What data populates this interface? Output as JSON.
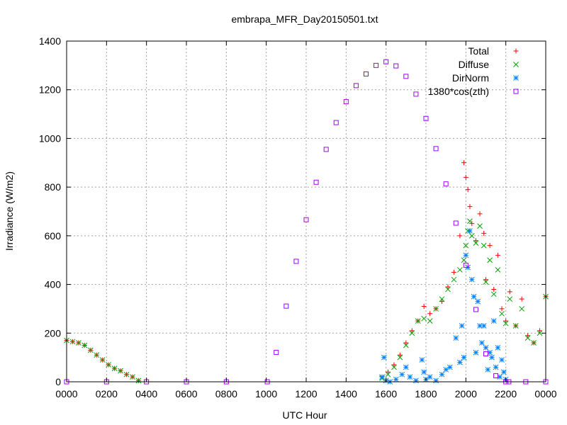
{
  "chart_data": {
    "type": "scatter",
    "title": "embrapa_MFR_Day20150501.txt",
    "xlabel": "UTC Hour",
    "ylabel": "Irradiance (W/m2)",
    "xlim": [
      0,
      24
    ],
    "ylim": [
      0,
      1400
    ],
    "grid": true,
    "legend_position": "top-right",
    "x_ticks": [
      {
        "value": 0,
        "label": "0000"
      },
      {
        "value": 2,
        "label": "0200"
      },
      {
        "value": 4,
        "label": "0400"
      },
      {
        "value": 6,
        "label": "0600"
      },
      {
        "value": 8,
        "label": "0800"
      },
      {
        "value": 10,
        "label": "1000"
      },
      {
        "value": 12,
        "label": "1200"
      },
      {
        "value": 14,
        "label": "1400"
      },
      {
        "value": 16,
        "label": "1600"
      },
      {
        "value": 18,
        "label": "1800"
      },
      {
        "value": 20,
        "label": "2000"
      },
      {
        "value": 22,
        "label": "2200"
      },
      {
        "value": 24,
        "label": "0000"
      }
    ],
    "y_ticks": [
      0,
      200,
      400,
      600,
      800,
      1000,
      1200,
      1400
    ],
    "series": [
      {
        "name": "Total",
        "marker": "plus",
        "color": "#ff0000",
        "x": [
          0.0,
          0.3,
          0.6,
          0.9,
          1.2,
          1.5,
          1.8,
          2.1,
          2.4,
          2.7,
          3.0,
          3.3,
          3.6,
          15.8,
          16.1,
          16.4,
          16.7,
          17.0,
          17.3,
          17.6,
          17.9,
          18.2,
          18.5,
          18.8,
          19.1,
          19.4,
          19.7,
          19.9,
          20.0,
          20.1,
          20.2,
          20.3,
          20.5,
          20.7,
          20.9,
          21.0,
          21.2,
          21.4,
          21.6,
          21.8,
          22.0,
          22.2,
          22.5,
          22.8,
          23.1,
          23.4,
          23.7,
          24.0
        ],
        "y": [
          170,
          165,
          160,
          150,
          130,
          110,
          90,
          70,
          55,
          45,
          30,
          20,
          5,
          20,
          40,
          70,
          110,
          160,
          210,
          250,
          310,
          280,
          300,
          330,
          390,
          450,
          600,
          900,
          840,
          790,
          720,
          650,
          580,
          690,
          610,
          420,
          560,
          380,
          520,
          300,
          250,
          370,
          230,
          340,
          190,
          160,
          210,
          350
        ]
      },
      {
        "name": "Diffuse",
        "marker": "cross",
        "color": "#00a000",
        "x": [
          0.0,
          0.3,
          0.6,
          0.9,
          1.2,
          1.5,
          1.8,
          2.1,
          2.4,
          2.7,
          3.0,
          3.3,
          3.6,
          15.8,
          16.1,
          16.4,
          16.7,
          17.0,
          17.3,
          17.6,
          17.9,
          18.2,
          18.5,
          18.8,
          19.1,
          19.4,
          19.7,
          19.9,
          20.0,
          20.1,
          20.2,
          20.3,
          20.5,
          20.7,
          20.9,
          21.0,
          21.2,
          21.4,
          21.6,
          21.8,
          22.0,
          22.2,
          22.5,
          22.8,
          23.1,
          23.4,
          23.7,
          24.0
        ],
        "y": [
          170,
          165,
          160,
          150,
          130,
          110,
          90,
          70,
          55,
          45,
          30,
          20,
          5,
          15,
          30,
          60,
          100,
          150,
          200,
          250,
          260,
          250,
          300,
          340,
          380,
          420,
          460,
          500,
          560,
          620,
          660,
          600,
          570,
          640,
          560,
          410,
          500,
          360,
          460,
          280,
          240,
          340,
          230,
          300,
          180,
          160,
          200,
          350
        ]
      },
      {
        "name": "DirNorm",
        "marker": "star",
        "color": "#0080ff",
        "x": [
          15.8,
          15.9,
          16.0,
          16.2,
          16.5,
          16.8,
          17.0,
          17.2,
          17.5,
          17.8,
          17.9,
          18.0,
          18.2,
          18.5,
          18.8,
          19.0,
          19.2,
          19.5,
          19.7,
          19.8,
          19.9,
          20.0,
          20.1,
          20.2,
          20.3,
          20.4,
          20.5,
          20.6,
          20.7,
          20.8,
          20.9,
          21.0,
          21.1,
          21.2,
          21.3,
          21.4,
          21.5,
          21.6,
          21.7,
          21.8,
          21.9,
          22.0
        ],
        "y": [
          20,
          100,
          5,
          0,
          10,
          30,
          60,
          20,
          5,
          90,
          40,
          10,
          20,
          5,
          30,
          50,
          60,
          180,
          80,
          230,
          100,
          520,
          470,
          620,
          420,
          350,
          120,
          330,
          230,
          160,
          230,
          140,
          50,
          120,
          100,
          250,
          60,
          140,
          20,
          90,
          40,
          10
        ]
      },
      {
        "name": "1380*cos(zth)",
        "marker": "square",
        "color": "#a000ff",
        "x": [
          0,
          2,
          4,
          6,
          8,
          10.05,
          10.5,
          11,
          11.5,
          12,
          12.5,
          13,
          13.5,
          14,
          14.5,
          15,
          15.5,
          16,
          16.5,
          17,
          17.5,
          18,
          18.5,
          19,
          19.5,
          20,
          20.5,
          21,
          21.5,
          22,
          22.15,
          23,
          24
        ],
        "y": [
          0,
          0,
          0,
          0,
          0,
          0,
          121,
          311,
          495,
          666,
          820,
          955,
          1065,
          1151,
          1217,
          1265,
          1300,
          1315,
          1298,
          1255,
          1182,
          1082,
          958,
          813,
          652,
          479,
          297,
          115,
          25,
          0,
          0,
          0,
          0
        ]
      }
    ]
  }
}
